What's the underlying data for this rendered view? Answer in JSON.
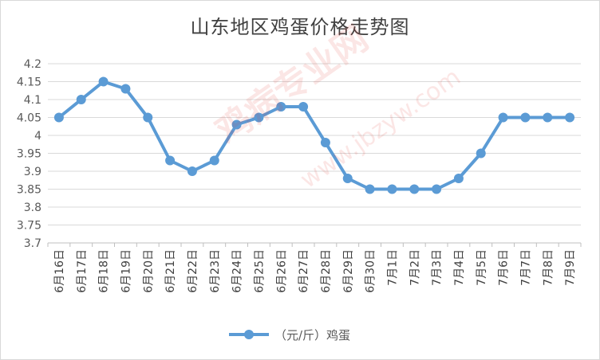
{
  "chart_data": {
    "type": "line",
    "title": "山东地区鸡蛋价格走势图",
    "categories": [
      "6月16日",
      "6月17日",
      "6月18日",
      "6月19日",
      "6月20日",
      "6月21日",
      "6月22日",
      "6月23日",
      "6月24日",
      "6月25日",
      "6月26日",
      "6月27日",
      "6月28日",
      "6月29日",
      "6月30日",
      "7月1日",
      "7月2日",
      "7月3日",
      "7月4日",
      "7月5日",
      "7月6日",
      "7月7日",
      "7月8日",
      "7月9日"
    ],
    "series": [
      {
        "name": "（元/斤）鸡蛋",
        "values": [
          4.05,
          4.1,
          4.15,
          4.13,
          4.05,
          3.93,
          3.9,
          3.93,
          4.03,
          4.05,
          4.08,
          4.08,
          3.98,
          3.88,
          3.85,
          3.85,
          3.85,
          3.85,
          3.88,
          3.95,
          4.05,
          4.05,
          4.05,
          4.05
        ],
        "color": "#5b9bd5"
      }
    ],
    "yticks": [
      "3.7",
      "3.75",
      "3.8",
      "3.85",
      "3.9",
      "3.95",
      "4",
      "4.05",
      "4.1",
      "4.15",
      "4.2"
    ],
    "ylim": [
      3.7,
      4.2
    ],
    "grid": true,
    "legend_position": "bottom"
  },
  "watermark": {
    "main": "鸡病专业网",
    "url": "www.jbzyw.com"
  }
}
